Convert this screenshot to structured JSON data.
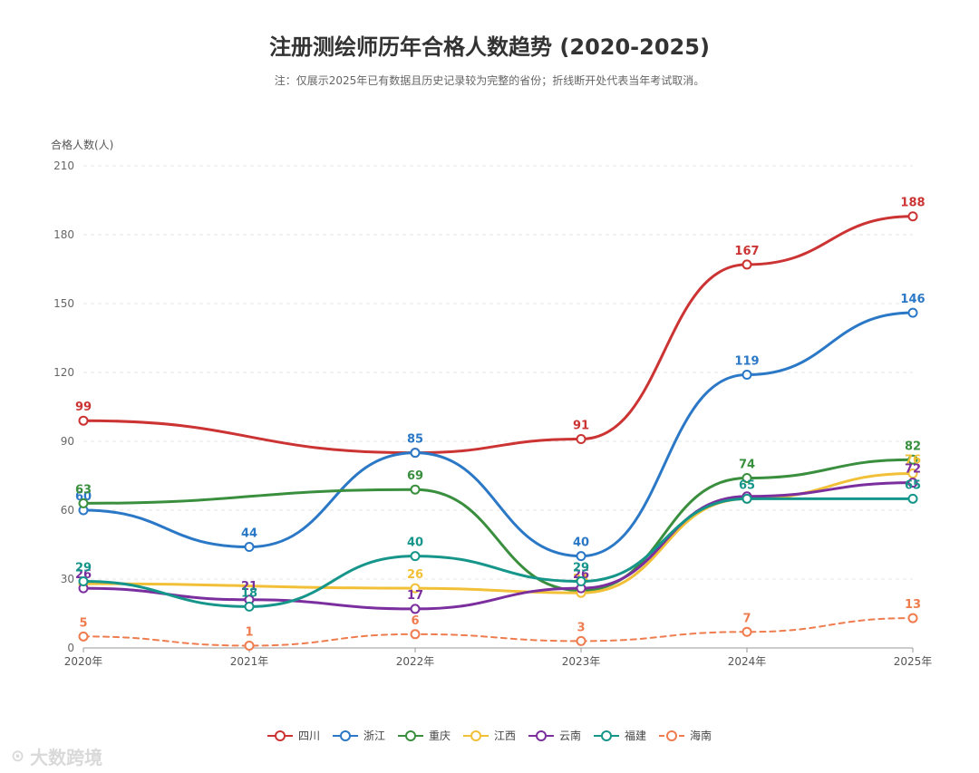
{
  "chart_data": {
    "type": "line",
    "title": "注册测绘师历年合格人数趋势 (2020-2025)",
    "subtitle": "注：仅展示2025年已有数据且历史记录较为完整的省份；折线断开处代表当年考试取消。",
    "ylabel": "合格人数(人)",
    "xlabel": "",
    "categories": [
      "2020年",
      "2021年",
      "2022年",
      "2023年",
      "2024年",
      "2025年"
    ],
    "ylim": [
      0,
      210
    ],
    "yticks": [
      0,
      30,
      60,
      90,
      120,
      150,
      180,
      210
    ],
    "grid": true,
    "legend_position": "bottom",
    "series": [
      {
        "name": "四川",
        "color": "#cc3333",
        "dashed": false,
        "values": [
          99,
          null,
          85,
          91,
          167,
          188
        ],
        "labels": [
          "99",
          "",
          "",
          "91",
          "167",
          "188"
        ]
      },
      {
        "name": "浙江",
        "color": "#2a78c6",
        "dashed": false,
        "values": [
          60,
          44,
          85,
          40,
          119,
          146
        ],
        "labels": [
          "60",
          "44",
          "85",
          "40",
          "119",
          "146"
        ]
      },
      {
        "name": "重庆",
        "color": "#3a8f3e",
        "dashed": false,
        "values": [
          63,
          null,
          69,
          25,
          74,
          82
        ],
        "labels": [
          "63",
          "",
          "69",
          "",
          "74",
          "82"
        ]
      },
      {
        "name": "江西",
        "color": "#f2c037",
        "dashed": false,
        "values": [
          28,
          null,
          26,
          24,
          65,
          76
        ],
        "labels": [
          "",
          "",
          "26",
          "24",
          "",
          "76"
        ]
      },
      {
        "name": "云南",
        "color": "#7b2f9e",
        "dashed": false,
        "values": [
          26,
          21,
          17,
          26,
          66,
          72
        ],
        "labels": [
          "26",
          "21",
          "17",
          "26",
          "",
          "72"
        ]
      },
      {
        "name": "福建",
        "color": "#16968a",
        "dashed": false,
        "values": [
          29,
          18,
          40,
          29,
          65,
          65
        ],
        "labels": [
          "29",
          "18",
          "40",
          "29",
          "65",
          "65"
        ]
      },
      {
        "name": "海南",
        "color": "#ef7c4e",
        "dashed": true,
        "values": [
          5,
          1,
          6,
          3,
          7,
          13
        ],
        "labels": [
          "5",
          "1",
          "6",
          "3",
          "7",
          "13"
        ]
      }
    ]
  },
  "watermark": {
    "text": "大数跨境",
    "icon": "weibo-icon"
  }
}
